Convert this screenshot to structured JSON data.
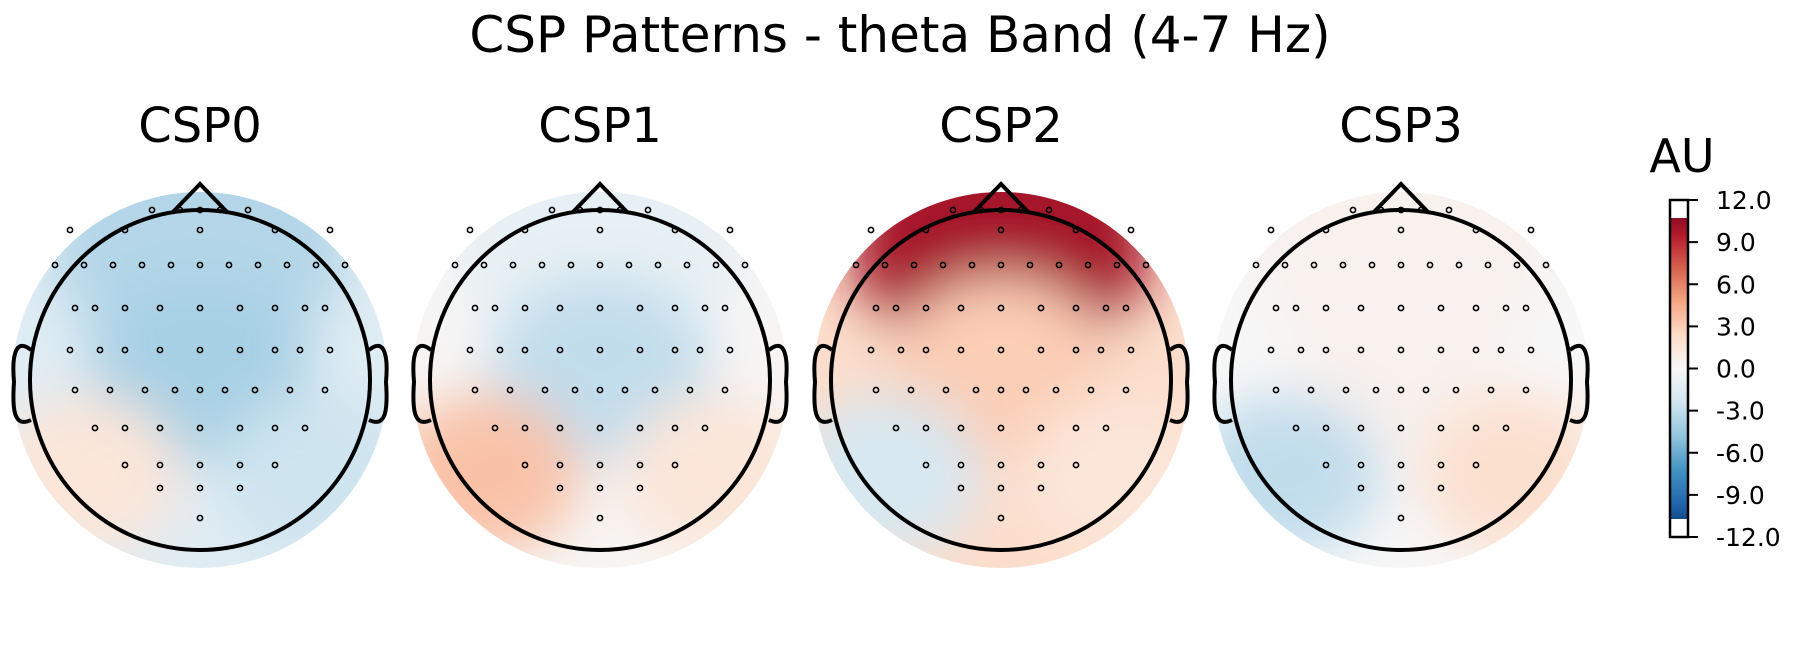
{
  "chart_data": {
    "type": "heatmap",
    "subtype": "topomap",
    "title": "CSP Patterns - theta Band (4-7 Hz)",
    "colormap": "RdBu_r",
    "colors": {
      "negative_max": "#053061",
      "neutral": "#f7f7f7",
      "positive_max": "#67001f"
    },
    "colorbar": {
      "unit": "AU",
      "range": [
        -12.0,
        12.0
      ],
      "ticks": [
        "12.0",
        "9.0",
        "6.0",
        "3.0",
        "0.0",
        "-3.0",
        "-6.0",
        "-9.0",
        "-12.0"
      ]
    },
    "panels": [
      {
        "title": "CSP0",
        "description_values": {
          "frontal": -3.5,
          "central": -4.0,
          "left_posterior": 1.5,
          "right_posterior": -2.5
        }
      },
      {
        "title": "CSP1",
        "description_values": {
          "frontal": -1.0,
          "central": -3.0,
          "left_posterior": 3.5,
          "right_posterior": 1.5
        }
      },
      {
        "title": "CSP2",
        "description_values": {
          "frontal": 10.0,
          "central": 3.0,
          "left_posterior": -2.0,
          "right_posterior": 1.5
        }
      },
      {
        "title": "CSP3",
        "description_values": {
          "frontal": 0.5,
          "central": 0.5,
          "left_posterior": -3.0,
          "right_posterior": 2.0
        }
      }
    ]
  }
}
